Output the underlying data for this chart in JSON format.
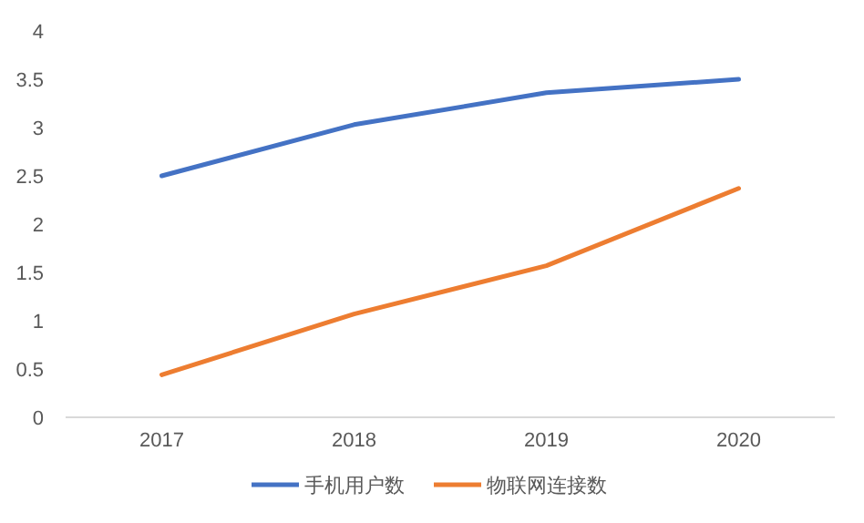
{
  "chart_data": {
    "type": "line",
    "categories": [
      "2017",
      "2018",
      "2019",
      "2020"
    ],
    "series": [
      {
        "name": "手机用户数",
        "color": "#4472c4",
        "values": [
          2.5,
          3.03,
          3.36,
          3.5
        ]
      },
      {
        "name": "物联网连接数",
        "color": "#ed7d31",
        "values": [
          0.44,
          1.07,
          1.57,
          2.37
        ]
      }
    ],
    "ylim": [
      0,
      4
    ],
    "yticks": [
      0,
      0.5,
      1,
      1.5,
      2,
      2.5,
      3,
      3.5,
      4
    ],
    "grid": false,
    "legend": "bottom",
    "marker": "none",
    "line_style": "solid"
  }
}
